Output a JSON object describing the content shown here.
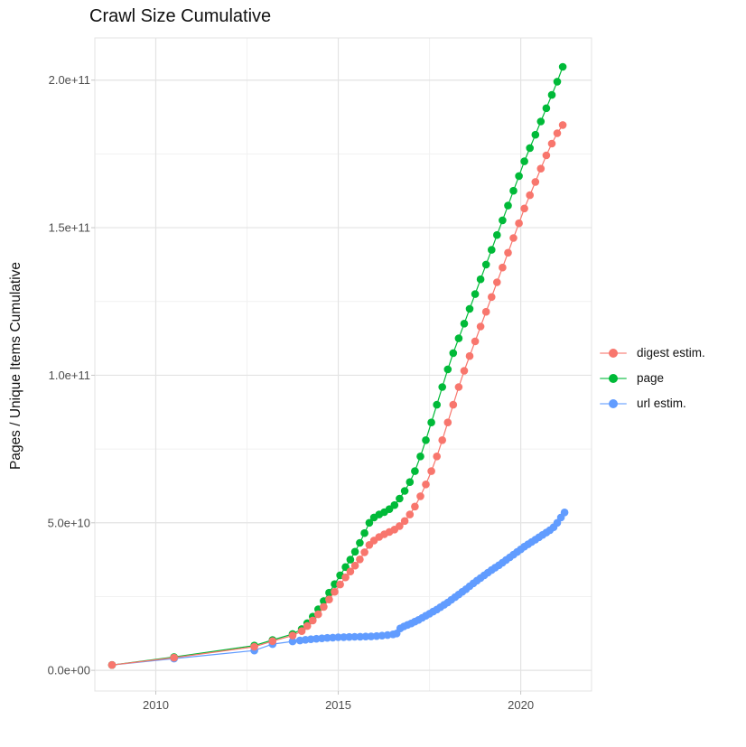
{
  "title": "Crawl Size Cumulative",
  "axes": {
    "y_label": "Pages / Unique Items Cumulative",
    "x_label": ""
  },
  "legend": {
    "position": "right",
    "items": [
      {
        "label": "digest estim.",
        "color": "#F8766D"
      },
      {
        "label": "page",
        "color": "#00BA38"
      },
      {
        "label": "url estim.",
        "color": "#619CFF"
      }
    ]
  },
  "colors": {
    "digest_estim": "#F8766D",
    "page": "#00BA38",
    "url_estim": "#619CFF",
    "grid_major": "#E3E3E3",
    "grid_minor": "#F1F1F1",
    "tick_mark": "#C6C6C6",
    "axis_text": "#4d4d4d"
  },
  "chart_data": {
    "type": "scatter",
    "style": "points+lines",
    "title": "Crawl Size Cumulative",
    "xlabel": "",
    "ylabel": "Pages / Unique Items Cumulative",
    "grid": true,
    "legend_position": "right",
    "xlim": [
      2008.33,
      2021.94
    ],
    "ylim": [
      -7000000000.0,
      214300000000.0
    ],
    "x_ticks": [
      {
        "value": 2010,
        "label": "2010"
      },
      {
        "value": 2015,
        "label": "2015"
      },
      {
        "value": 2020,
        "label": "2020"
      }
    ],
    "y_ticks": [
      {
        "value": 0,
        "label": "0.0e+00"
      },
      {
        "value": 50000000000.0,
        "label": "5.0e+10"
      },
      {
        "value": 100000000000.0,
        "label": "1.0e+11"
      },
      {
        "value": 150000000000.0,
        "label": "1.5e+11"
      },
      {
        "value": 200000000000.0,
        "label": "2.0e+11"
      }
    ],
    "x_minor": [
      2012.5,
      2017.5
    ],
    "y_minor": [
      25000000000.0,
      75000000000.0,
      125000000000.0,
      175000000000.0
    ],
    "units_note": "points_e9 are [year, cumulative count in billions (1e9)]",
    "series": [
      {
        "name": "url estim.",
        "color": "#619CFF",
        "points_e9": [
          [
            2008.8,
            1.8
          ],
          [
            2010.5,
            4.0
          ],
          [
            2012.7,
            6.7
          ],
          [
            2013.2,
            8.9
          ],
          [
            2013.75,
            9.8
          ],
          [
            2013.95,
            10.1
          ],
          [
            2014.1,
            10.35
          ],
          [
            2014.25,
            10.55
          ],
          [
            2014.4,
            10.7
          ],
          [
            2014.55,
            10.85
          ],
          [
            2014.7,
            11.0
          ],
          [
            2014.85,
            11.1
          ],
          [
            2015.0,
            11.2
          ],
          [
            2015.15,
            11.25
          ],
          [
            2015.3,
            11.3
          ],
          [
            2015.45,
            11.35
          ],
          [
            2015.6,
            11.4
          ],
          [
            2015.75,
            11.45
          ],
          [
            2015.9,
            11.5
          ],
          [
            2016.05,
            11.6
          ],
          [
            2016.2,
            11.75
          ],
          [
            2016.35,
            11.95
          ],
          [
            2016.5,
            12.2
          ],
          [
            2016.6,
            12.5
          ],
          [
            2016.7,
            14.2
          ],
          [
            2016.8,
            14.9
          ],
          [
            2016.9,
            15.4
          ],
          [
            2017.0,
            15.9
          ],
          [
            2017.1,
            16.5
          ],
          [
            2017.2,
            17.1
          ],
          [
            2017.3,
            17.8
          ],
          [
            2017.4,
            18.5
          ],
          [
            2017.5,
            19.2
          ],
          [
            2017.6,
            19.9
          ],
          [
            2017.7,
            20.6
          ],
          [
            2017.8,
            21.4
          ],
          [
            2017.9,
            22.2
          ],
          [
            2018.0,
            23.0
          ],
          [
            2018.1,
            23.9
          ],
          [
            2018.2,
            24.8
          ],
          [
            2018.3,
            25.7
          ],
          [
            2018.4,
            26.6
          ],
          [
            2018.5,
            27.5
          ],
          [
            2018.6,
            28.5
          ],
          [
            2018.7,
            29.5
          ],
          [
            2018.8,
            30.4
          ],
          [
            2018.9,
            31.3
          ],
          [
            2019.0,
            32.2
          ],
          [
            2019.1,
            33.1
          ],
          [
            2019.2,
            34.0
          ],
          [
            2019.3,
            34.8
          ],
          [
            2019.4,
            35.6
          ],
          [
            2019.5,
            36.5
          ],
          [
            2019.6,
            37.4
          ],
          [
            2019.7,
            38.3
          ],
          [
            2019.8,
            39.2
          ],
          [
            2019.9,
            40.1
          ],
          [
            2020.0,
            41.0
          ],
          [
            2020.1,
            41.9
          ],
          [
            2020.2,
            42.7
          ],
          [
            2020.3,
            43.5
          ],
          [
            2020.4,
            44.3
          ],
          [
            2020.5,
            45.1
          ],
          [
            2020.6,
            45.9
          ],
          [
            2020.7,
            46.7
          ],
          [
            2020.8,
            47.5
          ],
          [
            2020.9,
            48.5
          ],
          [
            2021.0,
            50.0
          ],
          [
            2021.1,
            51.8
          ],
          [
            2021.2,
            53.5
          ]
        ]
      },
      {
        "name": "page",
        "color": "#00BA38",
        "points_e9": [
          [
            2008.8,
            1.8
          ],
          [
            2010.5,
            4.5
          ],
          [
            2012.7,
            8.4
          ],
          [
            2013.2,
            10.3
          ],
          [
            2013.75,
            12.3
          ],
          [
            2014.0,
            14.0
          ],
          [
            2014.15,
            16.0
          ],
          [
            2014.3,
            18.2
          ],
          [
            2014.45,
            20.7
          ],
          [
            2014.6,
            23.5
          ],
          [
            2014.75,
            26.3
          ],
          [
            2014.9,
            29.2
          ],
          [
            2015.05,
            32.2
          ],
          [
            2015.2,
            35.0
          ],
          [
            2015.33,
            37.5
          ],
          [
            2015.46,
            40.2
          ],
          [
            2015.59,
            43.2
          ],
          [
            2015.72,
            46.5
          ],
          [
            2015.85,
            50.0
          ],
          [
            2015.98,
            51.8
          ],
          [
            2016.12,
            52.8
          ],
          [
            2016.26,
            53.6
          ],
          [
            2016.4,
            54.6
          ],
          [
            2016.54,
            56.0
          ],
          [
            2016.68,
            58.2
          ],
          [
            2016.82,
            60.8
          ],
          [
            2016.96,
            63.8
          ],
          [
            2017.1,
            67.5
          ],
          [
            2017.25,
            72.5
          ],
          [
            2017.4,
            78.0
          ],
          [
            2017.55,
            84.0
          ],
          [
            2017.7,
            90.0
          ],
          [
            2017.85,
            96.0
          ],
          [
            2018.0,
            102.0
          ],
          [
            2018.15,
            107.5
          ],
          [
            2018.3,
            112.5
          ],
          [
            2018.45,
            117.5
          ],
          [
            2018.6,
            122.5
          ],
          [
            2018.75,
            127.5
          ],
          [
            2018.9,
            132.5
          ],
          [
            2019.05,
            137.5
          ],
          [
            2019.2,
            142.5
          ],
          [
            2019.35,
            147.5
          ],
          [
            2019.5,
            152.5
          ],
          [
            2019.65,
            157.5
          ],
          [
            2019.8,
            162.5
          ],
          [
            2019.95,
            167.5
          ],
          [
            2020.1,
            172.5
          ],
          [
            2020.25,
            177.0
          ],
          [
            2020.4,
            181.5
          ],
          [
            2020.55,
            186.0
          ],
          [
            2020.7,
            190.5
          ],
          [
            2020.85,
            195.0
          ],
          [
            2021.0,
            199.5
          ],
          [
            2021.15,
            204.5
          ]
        ]
      },
      {
        "name": "digest estim.",
        "color": "#F8766D",
        "points_e9": [
          [
            2008.8,
            1.8
          ],
          [
            2010.5,
            4.3
          ],
          [
            2012.7,
            8.0
          ],
          [
            2013.2,
            9.9
          ],
          [
            2013.75,
            11.8
          ],
          [
            2014.0,
            13.3
          ],
          [
            2014.15,
            15.0
          ],
          [
            2014.3,
            16.9
          ],
          [
            2014.45,
            19.0
          ],
          [
            2014.6,
            21.5
          ],
          [
            2014.75,
            24.0
          ],
          [
            2014.9,
            26.6
          ],
          [
            2015.05,
            29.1
          ],
          [
            2015.2,
            31.5
          ],
          [
            2015.33,
            33.5
          ],
          [
            2015.46,
            35.5
          ],
          [
            2015.59,
            37.6
          ],
          [
            2015.72,
            40.0
          ],
          [
            2015.85,
            42.5
          ],
          [
            2015.98,
            44.0
          ],
          [
            2016.12,
            45.2
          ],
          [
            2016.26,
            46.1
          ],
          [
            2016.4,
            46.9
          ],
          [
            2016.54,
            47.7
          ],
          [
            2016.68,
            48.9
          ],
          [
            2016.82,
            50.6
          ],
          [
            2016.96,
            52.8
          ],
          [
            2017.1,
            55.5
          ],
          [
            2017.25,
            59.0
          ],
          [
            2017.4,
            63.0
          ],
          [
            2017.55,
            67.5
          ],
          [
            2017.7,
            72.5
          ],
          [
            2017.85,
            78.0
          ],
          [
            2018.0,
            84.0
          ],
          [
            2018.15,
            90.0
          ],
          [
            2018.3,
            96.0
          ],
          [
            2018.45,
            101.5
          ],
          [
            2018.6,
            106.5
          ],
          [
            2018.75,
            111.5
          ],
          [
            2018.9,
            116.5
          ],
          [
            2019.05,
            121.5
          ],
          [
            2019.2,
            126.5
          ],
          [
            2019.35,
            131.5
          ],
          [
            2019.5,
            136.5
          ],
          [
            2019.65,
            141.5
          ],
          [
            2019.8,
            146.5
          ],
          [
            2019.95,
            151.5
          ],
          [
            2020.1,
            156.5
          ],
          [
            2020.25,
            161.0
          ],
          [
            2020.4,
            165.5
          ],
          [
            2020.55,
            170.0
          ],
          [
            2020.7,
            174.5
          ],
          [
            2020.85,
            178.5
          ],
          [
            2021.0,
            182.0
          ],
          [
            2021.15,
            184.8
          ]
        ]
      }
    ]
  }
}
